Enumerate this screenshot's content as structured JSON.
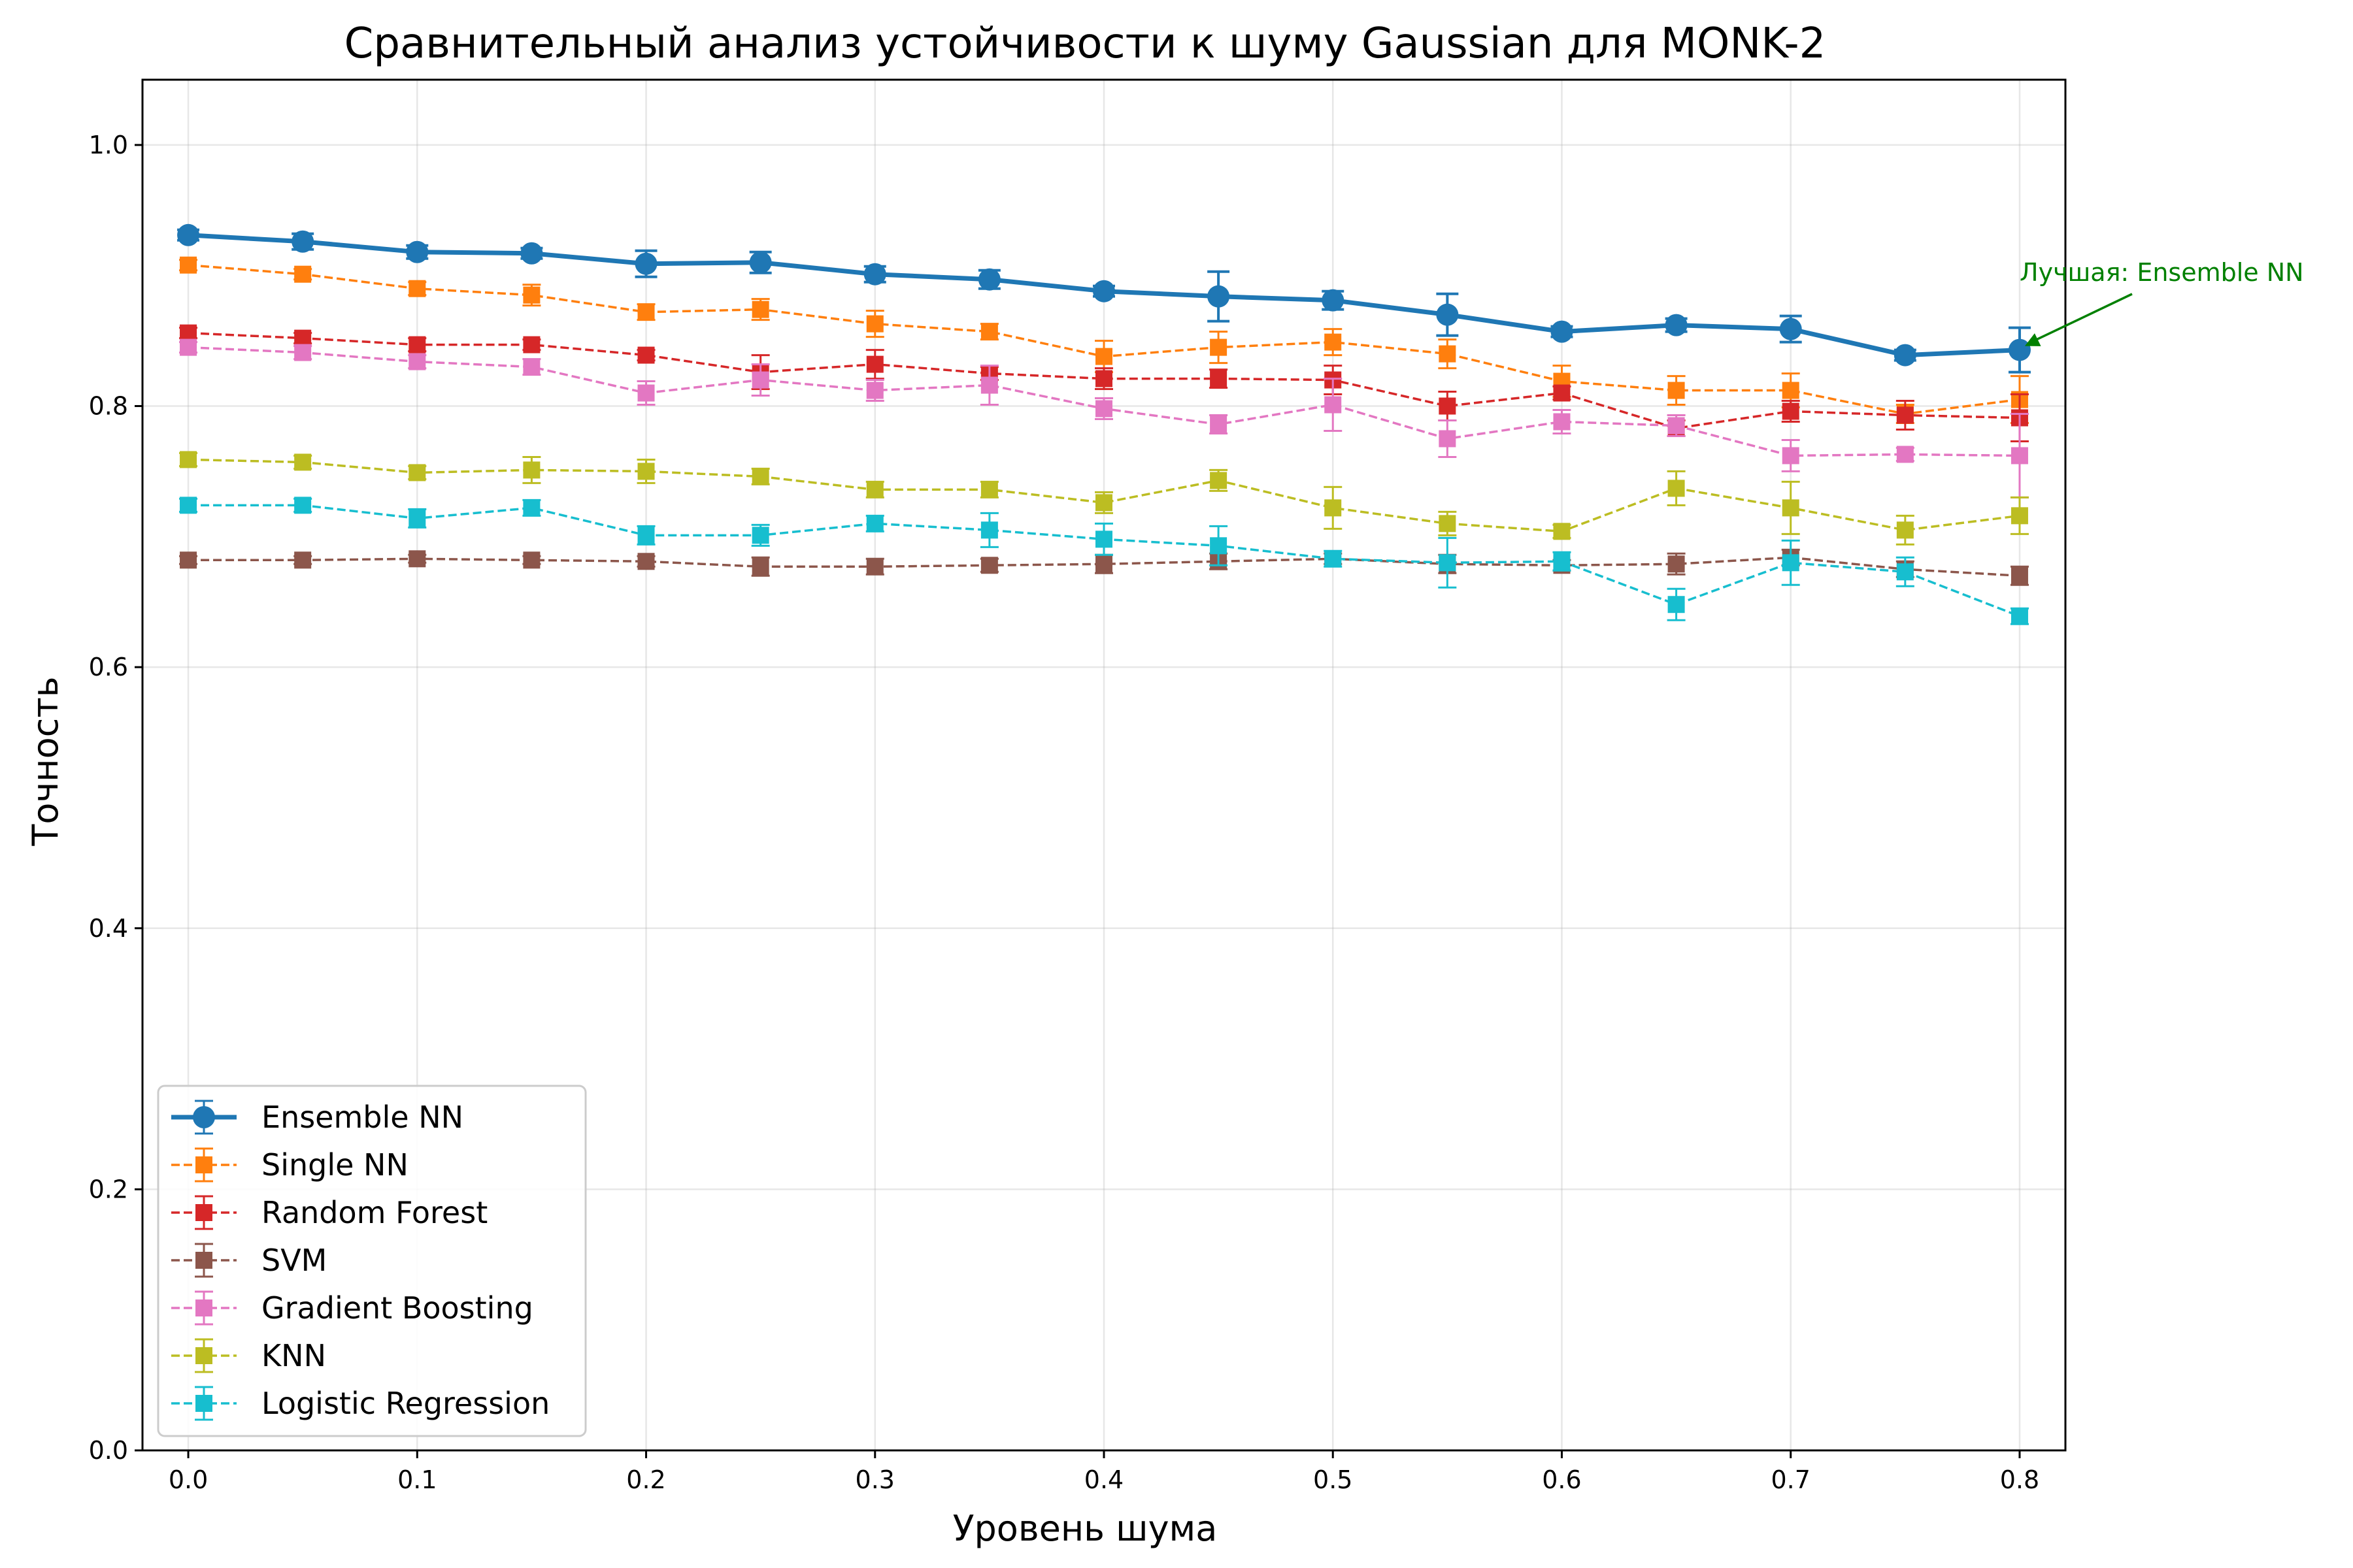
{
  "chart_data": {
    "type": "line",
    "title": "Сравнительный анализ устойчивости к шуму Gaussian для MONK-2",
    "xlabel": "Уровень шума",
    "ylabel": "Точность",
    "xlim": [
      -0.02,
      0.82
    ],
    "ylim": [
      0.0,
      1.05
    ],
    "xticks": [
      "0.0",
      "0.1",
      "0.2",
      "0.3",
      "0.4",
      "0.5",
      "0.6",
      "0.7",
      "0.8"
    ],
    "yticks": [
      "0.0",
      "0.2",
      "0.4",
      "0.6",
      "0.8",
      "1.0"
    ],
    "grid": true,
    "legend_position": "lower-left",
    "x": [
      0.0,
      0.05,
      0.1,
      0.15,
      0.2,
      0.25,
      0.3,
      0.35,
      0.4,
      0.45,
      0.5,
      0.55,
      0.6,
      0.65,
      0.7,
      0.75,
      0.8
    ],
    "series": [
      {
        "name": "Ensemble NN",
        "color": "#1f77b4",
        "marker": "circle",
        "style": "solid",
        "values": [
          0.931,
          0.926,
          0.918,
          0.917,
          0.909,
          0.91,
          0.901,
          0.897,
          0.888,
          0.884,
          0.881,
          0.87,
          0.857,
          0.862,
          0.859,
          0.839,
          0.843
        ],
        "errors": [
          0.004,
          0.006,
          0.005,
          0.004,
          0.01,
          0.008,
          0.006,
          0.007,
          0.004,
          0.019,
          0.007,
          0.016,
          0.004,
          0.005,
          0.01,
          0.004,
          0.017
        ]
      },
      {
        "name": "Single NN",
        "color": "#ff7f0e",
        "marker": "square",
        "style": "dashed",
        "values": [
          0.908,
          0.901,
          0.89,
          0.885,
          0.872,
          0.874,
          0.863,
          0.857,
          0.838,
          0.845,
          0.849,
          0.84,
          0.819,
          0.812,
          0.812,
          0.794,
          0.805
        ],
        "errors": [
          0.004,
          0.004,
          0.005,
          0.008,
          0.006,
          0.008,
          0.01,
          0.006,
          0.012,
          0.012,
          0.01,
          0.011,
          0.012,
          0.011,
          0.013,
          0.007,
          0.018
        ]
      },
      {
        "name": "Random Forest",
        "color": "#d62728",
        "marker": "square",
        "style": "dashed",
        "values": [
          0.856,
          0.852,
          0.847,
          0.847,
          0.839,
          0.826,
          0.832,
          0.825,
          0.821,
          0.821,
          0.82,
          0.8,
          0.81,
          0.783,
          0.796,
          0.793,
          0.791
        ],
        "errors": [
          0.004,
          0.004,
          0.005,
          0.004,
          0.004,
          0.013,
          0.011,
          0.005,
          0.008,
          0.007,
          0.011,
          0.011,
          0.005,
          0.006,
          0.008,
          0.011,
          0.018
        ]
      },
      {
        "name": "SVM",
        "color": "#8c564b",
        "marker": "square",
        "style": "dashed",
        "values": [
          0.682,
          0.682,
          0.683,
          0.682,
          0.681,
          0.677,
          0.677,
          0.678,
          0.679,
          0.681,
          0.683,
          0.679,
          0.678,
          0.679,
          0.684,
          0.675,
          0.67
        ],
        "errors": [
          0.003,
          0.003,
          0.003,
          0.003,
          0.004,
          0.007,
          0.006,
          0.005,
          0.007,
          0.006,
          0.004,
          0.007,
          0.004,
          0.008,
          0.006,
          0.006,
          0.007
        ]
      },
      {
        "name": "Gradient Boosting",
        "color": "#e377c2",
        "marker": "square",
        "style": "dashed",
        "values": [
          0.845,
          0.841,
          0.834,
          0.83,
          0.81,
          0.82,
          0.812,
          0.816,
          0.798,
          0.786,
          0.801,
          0.775,
          0.788,
          0.785,
          0.762,
          0.763,
          0.762
        ],
        "errors": [
          0.004,
          0.005,
          0.005,
          0.006,
          0.009,
          0.012,
          0.008,
          0.015,
          0.008,
          0.007,
          0.02,
          0.014,
          0.009,
          0.008,
          0.012,
          0.005,
          0.032
        ]
      },
      {
        "name": "KNN",
        "color": "#bcbd22",
        "marker": "square",
        "style": "dashed",
        "values": [
          0.759,
          0.757,
          0.749,
          0.751,
          0.75,
          0.746,
          0.736,
          0.736,
          0.726,
          0.743,
          0.722,
          0.71,
          0.704,
          0.737,
          0.722,
          0.705,
          0.716
        ],
        "errors": [
          0.005,
          0.005,
          0.005,
          0.01,
          0.009,
          0.006,
          0.006,
          0.006,
          0.008,
          0.008,
          0.016,
          0.009,
          0.005,
          0.013,
          0.02,
          0.011,
          0.014
        ]
      },
      {
        "name": "Logistic Regression",
        "color": "#17becf",
        "marker": "square",
        "style": "dashed",
        "values": [
          0.724,
          0.724,
          0.714,
          0.722,
          0.701,
          0.701,
          0.71,
          0.705,
          0.698,
          0.693,
          0.683,
          0.68,
          0.681,
          0.648,
          0.68,
          0.673,
          0.639
        ],
        "errors": [
          0.005,
          0.005,
          0.007,
          0.006,
          0.007,
          0.008,
          0.006,
          0.013,
          0.012,
          0.015,
          0.006,
          0.019,
          0.007,
          0.012,
          0.017,
          0.011,
          0.006
        ]
      }
    ],
    "annotations": [
      {
        "text": "Лучшая: Ensemble NN",
        "x": 0.8,
        "y": 0.843,
        "color": "#008000"
      }
    ]
  }
}
